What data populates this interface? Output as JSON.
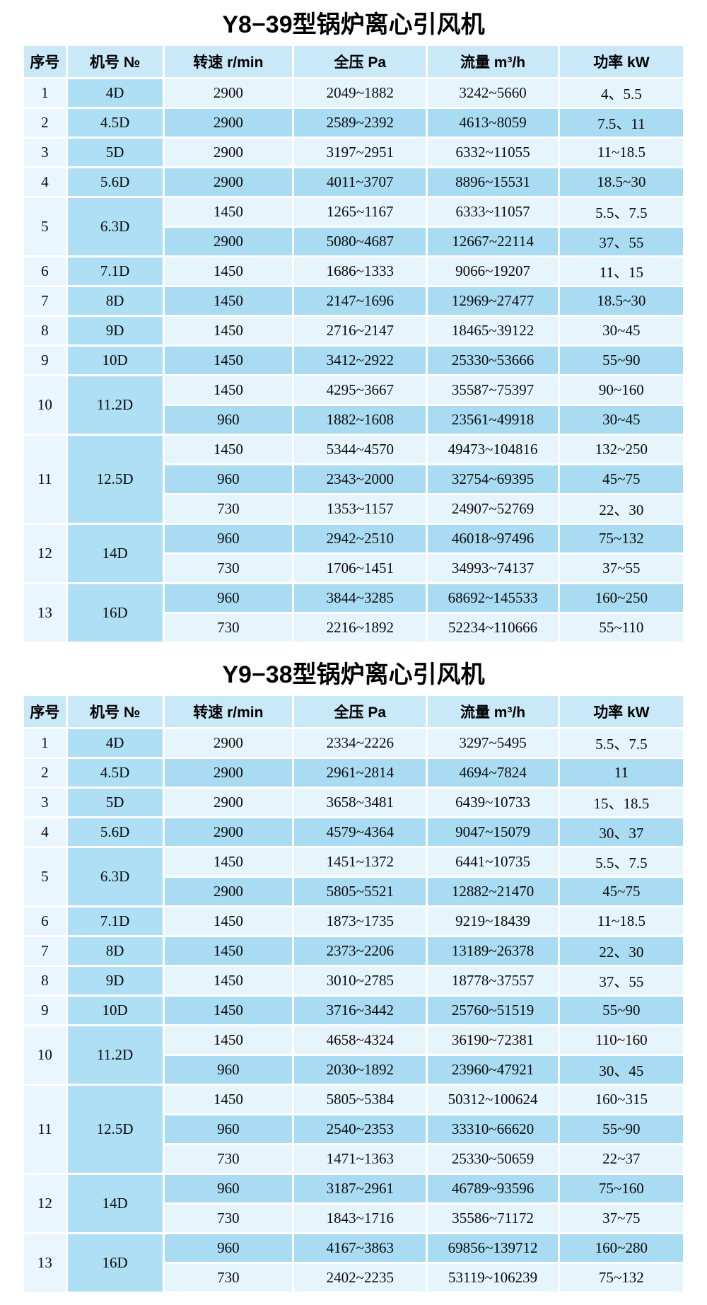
{
  "columns": [
    "序号",
    "机号 №",
    "转速 r/min",
    "全压 Pa",
    "流量 m³/h",
    "功率 kW"
  ],
  "colors": {
    "header_bg": "#c9e8f8",
    "row_light": "#e6f4fc",
    "row_medium": "#a9dbf2",
    "serial_col_bg": "#e9f6fd",
    "model_col_bg": "#aedff4",
    "grid_line": "#ffffff",
    "text": "#000000"
  },
  "tables": [
    {
      "title": "Y8−39型锅炉离心引风机",
      "rows": [
        {
          "no": "1",
          "model": "4D",
          "specs": [
            [
              "2900",
              "2049~1882",
              "3242~5660",
              "4、5.5"
            ]
          ]
        },
        {
          "no": "2",
          "model": "4.5D",
          "specs": [
            [
              "2900",
              "2589~2392",
              "4613~8059",
              "7.5、11"
            ]
          ]
        },
        {
          "no": "3",
          "model": "5D",
          "specs": [
            [
              "2900",
              "3197~2951",
              "6332~11055",
              "11~18.5"
            ]
          ]
        },
        {
          "no": "4",
          "model": "5.6D",
          "specs": [
            [
              "2900",
              "4011~3707",
              "8896~15531",
              "18.5~30"
            ]
          ]
        },
        {
          "no": "5",
          "model": "6.3D",
          "specs": [
            [
              "1450",
              "1265~1167",
              "6333~11057",
              "5.5、7.5"
            ],
            [
              "2900",
              "5080~4687",
              "12667~22114",
              "37、55"
            ]
          ]
        },
        {
          "no": "6",
          "model": "7.1D",
          "specs": [
            [
              "1450",
              "1686~1333",
              "9066~19207",
              "11、15"
            ]
          ]
        },
        {
          "no": "7",
          "model": "8D",
          "specs": [
            [
              "1450",
              "2147~1696",
              "12969~27477",
              "18.5~30"
            ]
          ]
        },
        {
          "no": "8",
          "model": "9D",
          "specs": [
            [
              "1450",
              "2716~2147",
              "18465~39122",
              "30~45"
            ]
          ]
        },
        {
          "no": "9",
          "model": "10D",
          "specs": [
            [
              "1450",
              "3412~2922",
              "25330~53666",
              "55~90"
            ]
          ]
        },
        {
          "no": "10",
          "model": "11.2D",
          "specs": [
            [
              "1450",
              "4295~3667",
              "35587~75397",
              "90~160"
            ],
            [
              "960",
              "1882~1608",
              "23561~49918",
              "30~45"
            ]
          ]
        },
        {
          "no": "11",
          "model": "12.5D",
          "specs": [
            [
              "1450",
              "5344~4570",
              "49473~104816",
              "132~250"
            ],
            [
              "960",
              "2343~2000",
              "32754~69395",
              "45~75"
            ],
            [
              "730",
              "1353~1157",
              "24907~52769",
              "22、30"
            ]
          ]
        },
        {
          "no": "12",
          "model": "14D",
          "specs": [
            [
              "960",
              "2942~2510",
              "46018~97496",
              "75~132"
            ],
            [
              "730",
              "1706~1451",
              "34993~74137",
              "37~55"
            ]
          ]
        },
        {
          "no": "13",
          "model": "16D",
          "specs": [
            [
              "960",
              "3844~3285",
              "68692~145533",
              "160~250"
            ],
            [
              "730",
              "2216~1892",
              "52234~110666",
              "55~110"
            ]
          ]
        }
      ]
    },
    {
      "title": "Y9−38型锅炉离心引风机",
      "rows": [
        {
          "no": "1",
          "model": "4D",
          "specs": [
            [
              "2900",
              "2334~2226",
              "3297~5495",
              "5.5、7.5"
            ]
          ]
        },
        {
          "no": "2",
          "model": "4.5D",
          "specs": [
            [
              "2900",
              "2961~2814",
              "4694~7824",
              "11"
            ]
          ]
        },
        {
          "no": "3",
          "model": "5D",
          "specs": [
            [
              "2900",
              "3658~3481",
              "6439~10733",
              "15、18.5"
            ]
          ]
        },
        {
          "no": "4",
          "model": "5.6D",
          "specs": [
            [
              "2900",
              "4579~4364",
              "9047~15079",
              "30、37"
            ]
          ]
        },
        {
          "no": "5",
          "model": "6.3D",
          "specs": [
            [
              "1450",
              "1451~1372",
              "6441~10735",
              "5.5、7.5"
            ],
            [
              "2900",
              "5805~5521",
              "12882~21470",
              "45~75"
            ]
          ]
        },
        {
          "no": "6",
          "model": "7.1D",
          "specs": [
            [
              "1450",
              "1873~1735",
              "9219~18439",
              "11~18.5"
            ]
          ]
        },
        {
          "no": "7",
          "model": "8D",
          "specs": [
            [
              "1450",
              "2373~2206",
              "13189~26378",
              "22、30"
            ]
          ]
        },
        {
          "no": "8",
          "model": "9D",
          "specs": [
            [
              "1450",
              "3010~2785",
              "18778~37557",
              "37、55"
            ]
          ]
        },
        {
          "no": "9",
          "model": "10D",
          "specs": [
            [
              "1450",
              "3716~3442",
              "25760~51519",
              "55~90"
            ]
          ]
        },
        {
          "no": "10",
          "model": "11.2D",
          "specs": [
            [
              "1450",
              "4658~4324",
              "36190~72381",
              "110~160"
            ],
            [
              "960",
              "2030~1892",
              "23960~47921",
              "30、45"
            ]
          ]
        },
        {
          "no": "11",
          "model": "12.5D",
          "specs": [
            [
              "1450",
              "5805~5384",
              "50312~100624",
              "160~315"
            ],
            [
              "960",
              "2540~2353",
              "33310~66620",
              "55~90"
            ],
            [
              "730",
              "1471~1363",
              "25330~50659",
              "22~37"
            ]
          ]
        },
        {
          "no": "12",
          "model": "14D",
          "specs": [
            [
              "960",
              "3187~2961",
              "46789~93596",
              "75~160"
            ],
            [
              "730",
              "1843~1716",
              "35586~71172",
              "37~75"
            ]
          ]
        },
        {
          "no": "13",
          "model": "16D",
          "specs": [
            [
              "960",
              "4167~3863",
              "69856~139712",
              "160~280"
            ],
            [
              "730",
              "2402~2235",
              "53119~106239",
              "75~132"
            ]
          ]
        }
      ]
    }
  ]
}
